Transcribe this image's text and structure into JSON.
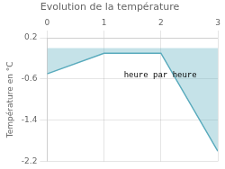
{
  "chart_data": {
    "type": "area",
    "title": "Evolution de la température",
    "ylabel": "Température en °C",
    "annotations": [
      "heure par heure"
    ],
    "x": [
      0,
      1,
      2,
      3
    ],
    "values": [
      -0.5,
      -0.1,
      -0.1,
      -2.0
    ],
    "color": "#5aabbd",
    "xlim": [
      0,
      3
    ],
    "xticks": [
      0,
      1,
      2,
      3
    ],
    "ylim": [
      -2.2,
      0.2
    ],
    "yticks": [
      0.2,
      -0.6,
      -1.4,
      -2.2
    ],
    "grid": true
  }
}
